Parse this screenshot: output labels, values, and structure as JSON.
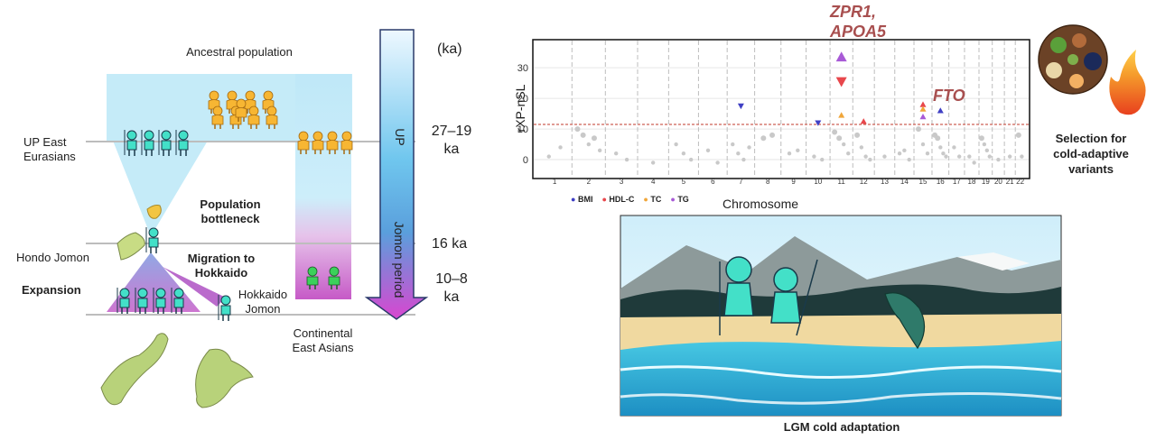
{
  "left_panel": {
    "ancestral_population": "Ancestral population",
    "up_east_eurasians": [
      "UP East",
      "Eurasians"
    ],
    "population_bottleneck": [
      "Population",
      "bottleneck"
    ],
    "hondo_jomon": "Hondo Jomon",
    "migration": [
      "Migration to",
      "Hokkaido"
    ],
    "expansion": "Expansion",
    "hokkaido_jomon": [
      "Hokkaido",
      "Jomon"
    ],
    "continental": [
      "Continental",
      "East Asians"
    ],
    "ka_header": "(ka)",
    "time_marks": [
      {
        "lines": [
          "27–19",
          "ka"
        ]
      },
      {
        "lines": [
          "16 ka"
        ]
      },
      {
        "lines": [
          "10–8",
          "ka"
        ]
      }
    ],
    "arrow_labels": {
      "up": "UP",
      "jomon": "Jomon period"
    }
  },
  "chart_data": {
    "type": "scatter",
    "title": "",
    "xlabel": "Chromosome",
    "ylabel": "rXP-nSL",
    "ylim": [
      -5,
      38
    ],
    "yticks": [
      0,
      10,
      20,
      30
    ],
    "chromosomes": [
      "1",
      "2",
      "3",
      "4",
      "5",
      "6",
      "7",
      "8",
      "9",
      "10",
      "11",
      "12",
      "13",
      "14",
      "15",
      "16",
      "17",
      "18",
      "19",
      "20",
      "21",
      "22"
    ],
    "threshold": 11.5,
    "grid": true,
    "legend_position": "bottom-left",
    "series": [
      {
        "name": "BMI",
        "color": "#3f3fc4"
      },
      {
        "name": "HDL-C",
        "color": "#e8474c"
      },
      {
        "name": "TC",
        "color": "#f0a63a"
      },
      {
        "name": "TG",
        "color": "#a85ad6"
      }
    ],
    "significant_points": [
      {
        "chrom": "7",
        "value": 17.5,
        "trait": "BMI",
        "shape": "down"
      },
      {
        "chrom": "10",
        "value": 12,
        "trait": "BMI",
        "shape": "down"
      },
      {
        "chrom": "11",
        "value": 33.5,
        "trait": "TG",
        "shape": "up"
      },
      {
        "chrom": "11",
        "value": 25.5,
        "trait": "HDL-C",
        "shape": "down"
      },
      {
        "chrom": "11",
        "value": 14.5,
        "trait": "TC",
        "shape": "up"
      },
      {
        "chrom": "12",
        "value": 12.5,
        "trait": "HDL-C",
        "shape": "up"
      },
      {
        "chrom": "15",
        "value": 18,
        "trait": "HDL-C",
        "shape": "up"
      },
      {
        "chrom": "15",
        "value": 16.5,
        "trait": "TC",
        "shape": "up"
      },
      {
        "chrom": "15",
        "value": 14,
        "trait": "TG",
        "shape": "up"
      },
      {
        "chrom": "16",
        "value": 16,
        "trait": "BMI",
        "shape": "up"
      }
    ],
    "background_points": [
      {
        "chrom": "1",
        "values": [
          1,
          4
        ]
      },
      {
        "chrom": "2",
        "values": [
          10,
          8,
          5,
          7,
          3
        ]
      },
      {
        "chrom": "3",
        "values": [
          2,
          0
        ]
      },
      {
        "chrom": "4",
        "values": [
          -1
        ]
      },
      {
        "chrom": "5",
        "values": [
          5,
          2,
          0
        ]
      },
      {
        "chrom": "6",
        "values": [
          3,
          -1
        ]
      },
      {
        "chrom": "7",
        "values": [
          5,
          2,
          0,
          4
        ]
      },
      {
        "chrom": "8",
        "values": [
          7,
          8
        ]
      },
      {
        "chrom": "9",
        "values": [
          2,
          3
        ]
      },
      {
        "chrom": "10",
        "values": [
          1,
          0
        ]
      },
      {
        "chrom": "11",
        "values": [
          9,
          7,
          5,
          2
        ]
      },
      {
        "chrom": "12",
        "values": [
          8,
          4,
          1,
          0
        ]
      },
      {
        "chrom": "13",
        "values": [
          1
        ]
      },
      {
        "chrom": "14",
        "values": [
          2,
          3,
          0
        ]
      },
      {
        "chrom": "15",
        "values": [
          10,
          5,
          2
        ]
      },
      {
        "chrom": "16",
        "values": [
          8,
          7,
          4,
          2,
          1
        ]
      },
      {
        "chrom": "17",
        "values": [
          4,
          1
        ]
      },
      {
        "chrom": "18",
        "values": [
          1,
          -1
        ]
      },
      {
        "chrom": "19",
        "values": [
          7,
          5,
          3,
          1
        ]
      },
      {
        "chrom": "20",
        "values": [
          0
        ]
      },
      {
        "chrom": "21",
        "values": [
          1
        ]
      },
      {
        "chrom": "22",
        "values": [
          8,
          1
        ]
      }
    ],
    "annotations": [
      {
        "text": "ZPR1,",
        "chrom": "11"
      },
      {
        "text": "APOA5",
        "chrom": "11"
      },
      {
        "text": "FTO",
        "chrom": "16"
      }
    ]
  },
  "right_panel": {
    "selection_label": [
      "Selection for",
      "cold-adaptive",
      "variants"
    ],
    "lgm_label": "LGM cold adaptation"
  }
}
